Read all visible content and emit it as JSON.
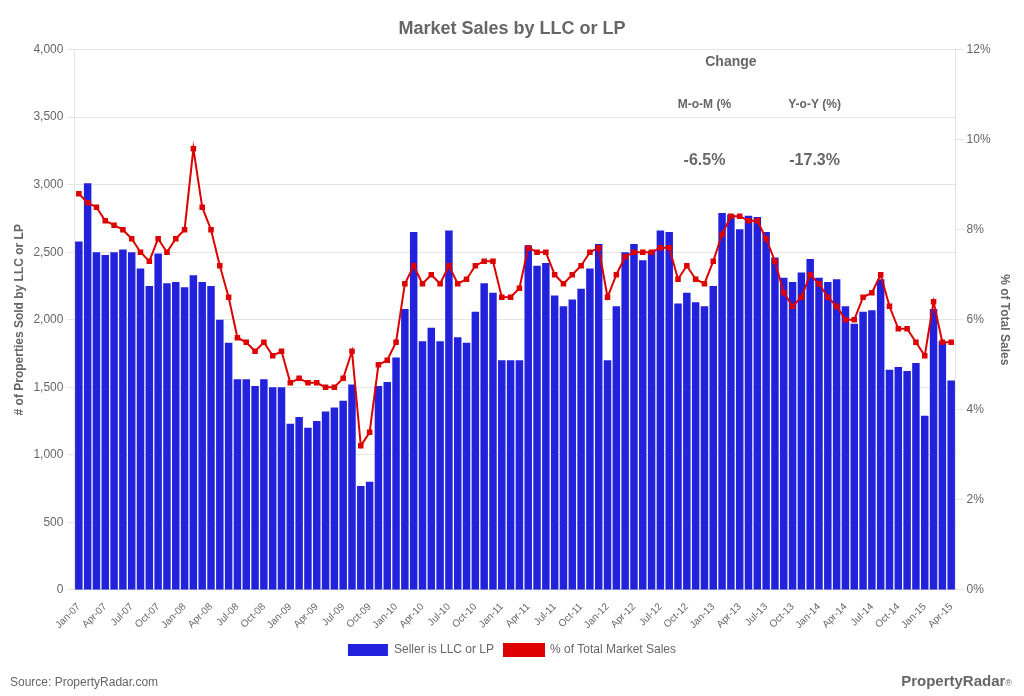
{
  "chart_data": {
    "type": "bar",
    "title": "Market Sales by LLC or LP",
    "ylabel": "# of Properties Sold by LLC or LP",
    "y2label": "% of Total Sales",
    "categories": [
      "Jan-07",
      null,
      null,
      "Apr-07",
      null,
      null,
      "Jul-07",
      null,
      null,
      "Oct-07",
      null,
      null,
      "Jan-08",
      null,
      null,
      "Apr-08",
      null,
      null,
      "Jul-08",
      null,
      null,
      "Oct-08",
      null,
      null,
      "Jan-09",
      null,
      null,
      "Apr-09",
      null,
      null,
      "Jul-09",
      null,
      null,
      "Oct-09",
      null,
      null,
      "Jan-10",
      null,
      null,
      "Apr-10",
      null,
      null,
      "Jul-10",
      null,
      null,
      "Oct-10",
      null,
      null,
      "Jan-11",
      null,
      null,
      "Apr-11",
      null,
      null,
      "Jul-11",
      null,
      null,
      "Oct-11",
      null,
      null,
      "Jan-12",
      null,
      null,
      "Apr-12",
      null,
      null,
      "Jul-12",
      null,
      null,
      "Oct-12",
      null,
      null,
      "Jan-13",
      null,
      null,
      "Apr-13",
      null,
      null,
      "Jul-13",
      null,
      null,
      "Oct-13",
      null,
      null,
      "Jan-14",
      null,
      null,
      "Apr-14",
      null,
      null,
      "Jul-14",
      null,
      null,
      "Oct-14",
      null,
      null,
      "Jan-15",
      null,
      null,
      "Apr-15"
    ],
    "series": [
      {
        "name": "Seller is LLC or LP",
        "type": "bar",
        "color": "#2222DD",
        "values": [
          2580,
          3010,
          2500,
          2480,
          2500,
          2520,
          2500,
          2380,
          2250,
          2490,
          2270,
          2280,
          2240,
          2330,
          2280,
          2250,
          2000,
          1830,
          1560,
          1560,
          1510,
          1560,
          1500,
          1500,
          1230,
          1280,
          1200,
          1250,
          1320,
          1350,
          1400,
          1520,
          770,
          800,
          1510,
          1540,
          1720,
          2080,
          2650,
          1840,
          1940,
          1840,
          2660,
          1870,
          1830,
          2060,
          2270,
          2200,
          1700,
          1700,
          1700,
          2550,
          2400,
          2420,
          2180,
          2100,
          2150,
          2230,
          2380,
          2560,
          1700,
          2100,
          2500,
          2560,
          2440,
          2510,
          2660,
          2650,
          2120,
          2200,
          2130,
          2100,
          2250,
          2790,
          2780,
          2670,
          2770,
          2760,
          2650,
          2460,
          2310,
          2280,
          2350,
          2450,
          2310,
          2280,
          2300,
          2100,
          1970,
          2060,
          2070,
          2300,
          1630,
          1650,
          1620,
          1680,
          1290,
          2080,
          1840,
          1550
        ]
      },
      {
        "name": "% of Total Market Sales",
        "type": "line",
        "color": "#DD0000",
        "marker": "square",
        "axis": "y2",
        "values": [
          8.8,
          8.6,
          8.5,
          8.2,
          8.1,
          8.0,
          7.8,
          7.5,
          7.3,
          7.8,
          7.5,
          7.8,
          8.0,
          9.8,
          8.5,
          8.0,
          7.2,
          6.5,
          5.6,
          5.5,
          5.3,
          5.5,
          5.2,
          5.3,
          4.6,
          4.7,
          4.6,
          4.6,
          4.5,
          4.5,
          4.7,
          5.3,
          3.2,
          3.5,
          5.0,
          5.1,
          5.5,
          6.8,
          7.2,
          6.8,
          7.0,
          6.8,
          7.2,
          6.8,
          6.9,
          7.2,
          7.3,
          7.3,
          6.5,
          6.5,
          6.7,
          7.6,
          7.5,
          7.5,
          7.0,
          6.8,
          7.0,
          7.2,
          7.5,
          7.6,
          6.5,
          7.0,
          7.4,
          7.5,
          7.5,
          7.5,
          7.6,
          7.6,
          6.9,
          7.2,
          6.9,
          6.8,
          7.3,
          7.9,
          8.3,
          8.3,
          8.2,
          8.2,
          7.8,
          7.3,
          6.6,
          6.3,
          6.5,
          7.0,
          6.8,
          6.5,
          6.3,
          6.0,
          6.0,
          6.5,
          6.6,
          7.0,
          6.3,
          5.8,
          5.8,
          5.5,
          5.2,
          6.4,
          5.5,
          5.5
        ]
      }
    ],
    "ylim": [
      0,
      4000
    ],
    "yticks": [
      0,
      500,
      {
        "value": 1000,
        "label": "1,000"
      },
      {
        "value": 1500,
        "label": "1,500"
      },
      {
        "value": 2000,
        "label": "2,000"
      },
      {
        "value": 2500,
        "label": "2,500"
      },
      {
        "value": 3000,
        "label": "3,000"
      },
      {
        "value": 3500,
        "label": "3,500"
      },
      {
        "value": 4000,
        "label": "4,000"
      }
    ],
    "y2lim": [
      0,
      12
    ],
    "y2ticks": [
      {
        "value": 0,
        "label": "0%"
      },
      {
        "value": 2,
        "label": "2%"
      },
      {
        "value": 4,
        "label": "4%"
      },
      {
        "value": 6,
        "label": "6%"
      },
      {
        "value": 8,
        "label": "8%"
      },
      {
        "value": 10,
        "label": "10%"
      },
      {
        "value": 12,
        "label": "12%"
      }
    ],
    "grid": true,
    "legend": "bottom",
    "annotations": [
      "Change",
      "M-o-M (%",
      "Y-o-Y (%)",
      "-6.5%",
      "-17.3%",
      "Source: PropertyRadar.com",
      "Property",
      "Radar",
      "®"
    ]
  }
}
